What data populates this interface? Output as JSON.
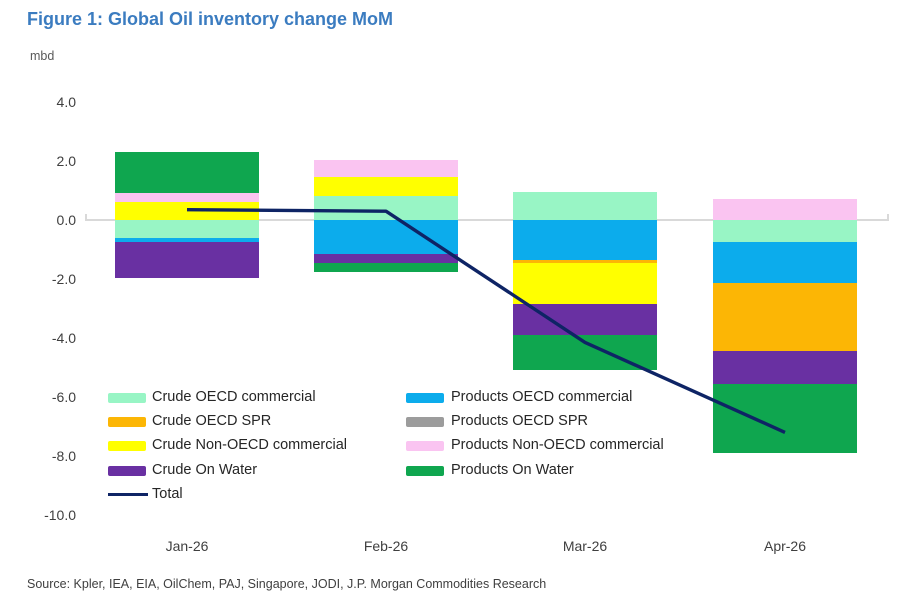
{
  "title": "Figure 1: Global Oil inventory change MoM",
  "source": "Source: Kpler, IEA, EIA, OilChem, PAJ, Singapore, JODI, J.P. Morgan Commodities Research",
  "y_axis": {
    "unit_label": "mbd",
    "tick_labels": [
      "4.0",
      "2.0",
      "0.0",
      "-2.0",
      "-4.0",
      "-6.0",
      "-8.0",
      "-10.0"
    ],
    "tick_values": [
      4,
      2,
      0,
      -2,
      -4,
      -6,
      -8,
      -10
    ]
  },
  "colors": {
    "title": "#3b7cc0",
    "axis_text": "#3f3f3f",
    "zero_line": "#d9d9d9",
    "total_line": "#0e2465"
  },
  "chart_data": {
    "type": "bar",
    "stacked": true,
    "title": "Figure 1: Global Oil inventory change MoM",
    "ylabel": "mbd",
    "ylim": [
      -10,
      4
    ],
    "ytick_step": 2,
    "grid": "zero-line-only",
    "legend_position": "bottom-left-two-columns",
    "categories": [
      "Jan-26",
      "Feb-26",
      "Mar-26",
      "Apr-26"
    ],
    "series": [
      {
        "key": "crude_oecd_commercial",
        "name": "Crude OECD commercial",
        "color": "#98f5c5",
        "values": [
          -0.6,
          0.8,
          0.95,
          -0.75
        ]
      },
      {
        "key": "crude_oecd_spr",
        "name": "Crude OECD SPR",
        "color": "#fcb605",
        "values": [
          0,
          0,
          -0.1,
          -2.3
        ]
      },
      {
        "key": "crude_non_oecd_commercial",
        "name": "Crude Non-OECD commercial",
        "color": "#ffff00",
        "values": [
          0.6,
          0.65,
          -1.4,
          0
        ]
      },
      {
        "key": "crude_on_water",
        "name": "Crude On Water",
        "color": "#6930a2",
        "values": [
          -1.2,
          -0.3,
          -1.05,
          -1.1
        ]
      },
      {
        "key": "products_oecd_commercial",
        "name": "Products OECD commercial",
        "color": "#0cacec",
        "values": [
          -0.15,
          -1.15,
          -1.35,
          -1.4
        ]
      },
      {
        "key": "products_oecd_spr",
        "name": "Products OECD SPR",
        "color": "#9c9c9c",
        "values": [
          0,
          0,
          0,
          0
        ]
      },
      {
        "key": "products_non_oecd_commercial",
        "name": "Products Non-OECD commercial",
        "color": "#fac4f1",
        "values": [
          0.3,
          0.6,
          0,
          0.7
        ]
      },
      {
        "key": "products_on_water",
        "name": "Products On Water",
        "color": "#0fa64f",
        "values": [
          1.4,
          -0.3,
          -1.2,
          -2.35
        ]
      }
    ],
    "positive_stack_order": [
      "crude_oecd_commercial",
      "crude_oecd_spr",
      "crude_non_oecd_commercial",
      "products_oecd_spr",
      "products_non_oecd_commercial",
      "products_on_water"
    ],
    "negative_stack_order": [
      "crude_oecd_commercial",
      "products_oecd_commercial",
      "crude_oecd_spr",
      "crude_non_oecd_commercial",
      "crude_on_water",
      "products_oecd_spr",
      "products_on_water"
    ],
    "line": {
      "name": "Total",
      "color": "#0e2465",
      "values": [
        0.35,
        0.3,
        -4.15,
        -7.2
      ]
    }
  },
  "legend": {
    "left_column_keys": [
      "crude_oecd_commercial",
      "crude_oecd_spr",
      "crude_non_oecd_commercial",
      "crude_on_water",
      "total"
    ],
    "right_column_keys": [
      "products_oecd_commercial",
      "products_oecd_spr",
      "products_non_oecd_commercial",
      "products_on_water"
    ],
    "total_label": "Total"
  }
}
